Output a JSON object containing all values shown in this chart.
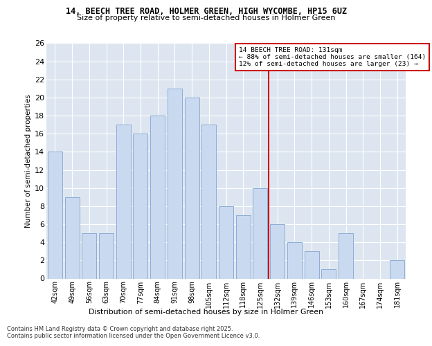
{
  "title1": "14, BEECH TREE ROAD, HOLMER GREEN, HIGH WYCOMBE, HP15 6UZ",
  "title2": "Size of property relative to semi-detached houses in Holmer Green",
  "xlabel": "Distribution of semi-detached houses by size in Holmer Green",
  "ylabel": "Number of semi-detached properties",
  "categories": [
    "42sqm",
    "49sqm",
    "56sqm",
    "63sqm",
    "70sqm",
    "77sqm",
    "84sqm",
    "91sqm",
    "98sqm",
    "105sqm",
    "112sqm",
    "118sqm",
    "125sqm",
    "132sqm",
    "139sqm",
    "146sqm",
    "153sqm",
    "160sqm",
    "167sqm",
    "174sqm",
    "181sqm"
  ],
  "values": [
    14,
    9,
    5,
    5,
    17,
    16,
    18,
    21,
    20,
    17,
    8,
    7,
    10,
    6,
    4,
    3,
    1,
    5,
    0,
    0,
    2
  ],
  "bar_color": "#c9d9f0",
  "bar_edge_color": "#8eadd4",
  "annotation_title": "14 BEECH TREE ROAD: 131sqm",
  "annotation_line1": "← 88% of semi-detached houses are smaller (164)",
  "annotation_line2": "12% of semi-detached houses are larger (23) →",
  "annotation_box_color": "#ffffff",
  "annotation_box_edge": "#cc0000",
  "vline_color": "#cc0000",
  "vline_x": 12.5,
  "ylim": [
    0,
    26
  ],
  "yticks": [
    0,
    2,
    4,
    6,
    8,
    10,
    12,
    14,
    16,
    18,
    20,
    22,
    24,
    26
  ],
  "background_color": "#dde6f0",
  "grid_color": "#ffffff",
  "fig_background": "#ffffff",
  "footer1": "Contains HM Land Registry data © Crown copyright and database right 2025.",
  "footer2": "Contains public sector information licensed under the Open Government Licence v3.0."
}
